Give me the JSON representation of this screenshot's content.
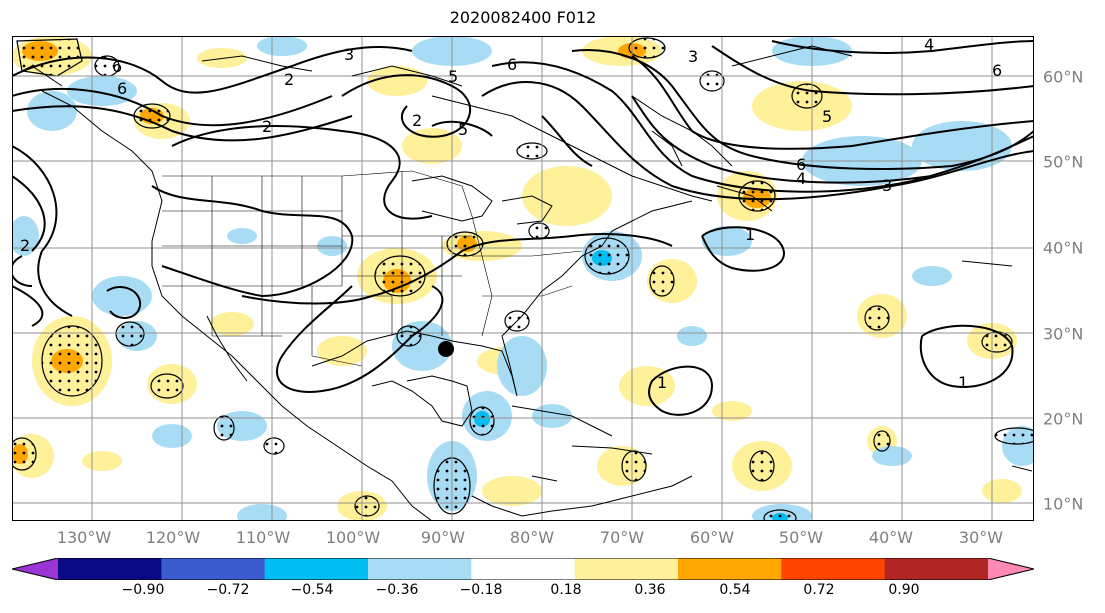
{
  "title": "2020082400 F012",
  "lon_labels": [
    "130°W",
    "120°W",
    "110°W",
    "100°W",
    "90°W",
    "80°W",
    "70°W",
    "60°W",
    "50°W",
    "40°W",
    "30°W"
  ],
  "lat_labels": [
    "60°N",
    "50°N",
    "40°N",
    "30°N",
    "20°N",
    "10°N"
  ],
  "colorbar": {
    "ticks": [
      "−0.90",
      "−0.72",
      "−0.54",
      "−0.36",
      "−0.18",
      "0.18",
      "0.36",
      "0.54",
      "0.72",
      "0.90"
    ],
    "colors": [
      "#9a35d4",
      "#0a0a85",
      "#3a5ccf",
      "#00bdf2",
      "#a8dcf4",
      "#ffffff",
      "#fff09a",
      "#ffa600",
      "#ff4500",
      "#b22525",
      "#ff88b4"
    ]
  },
  "contour_labels": [
    "1",
    "1",
    "1",
    "2",
    "2",
    "2",
    "2",
    "3",
    "3",
    "3",
    "4",
    "4",
    "5",
    "5",
    "5",
    "6",
    "6",
    "6",
    "6",
    "6"
  ],
  "marker": "storm-center"
}
